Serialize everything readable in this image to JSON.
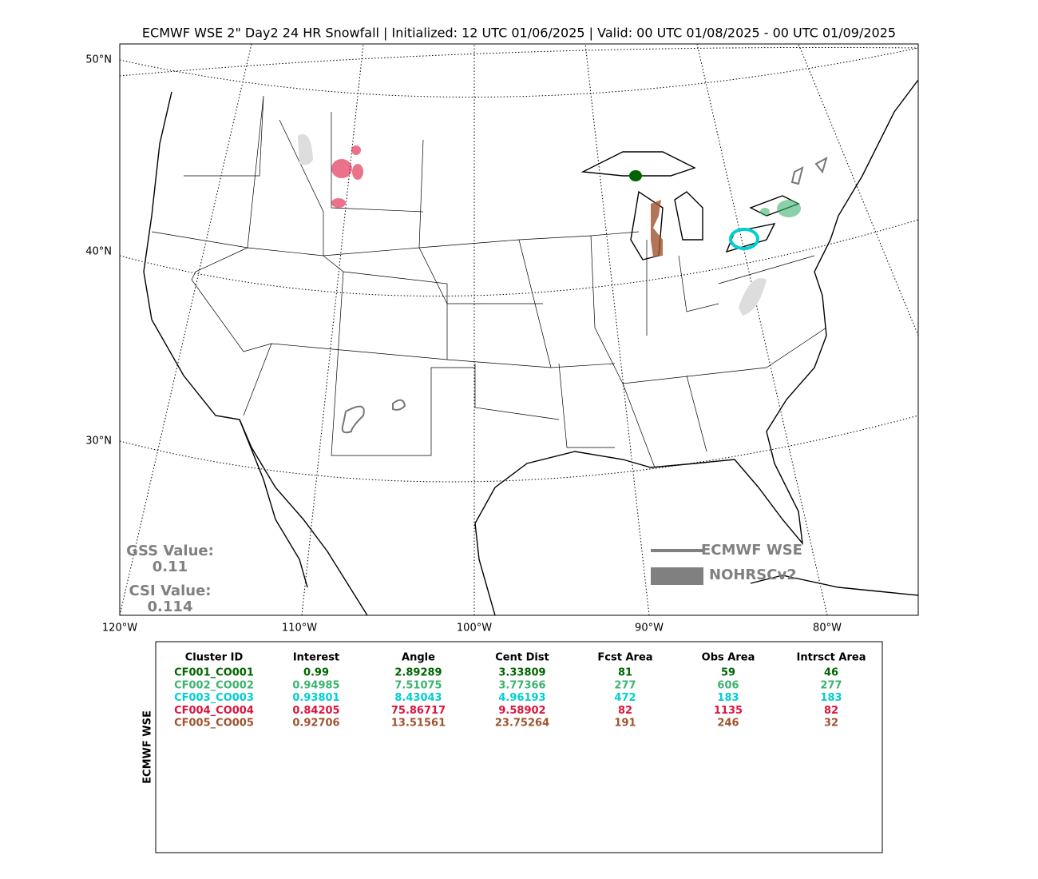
{
  "title": "ECMWF WSE 2\" Day2 24 HR Snowfall | Initialized: 12 UTC 01/06/2025 | Valid: 00 UTC 01/08/2025 - 00 UTC 01/09/2025",
  "map": {
    "lat_labels": [
      "50°N",
      "40°N",
      "30°N"
    ],
    "lon_labels": [
      "120°W",
      "110°W",
      "100°W",
      "90°W",
      "80°W"
    ],
    "scores": [
      {
        "label": "GSS Value:",
        "value": "0.11"
      },
      {
        "label": "CSI Value:",
        "value": "0.114"
      }
    ],
    "legend": [
      {
        "name": "ECMWF WSE",
        "style": "line",
        "color": "#808080"
      },
      {
        "name": "NOHRSCv2",
        "style": "fill",
        "color": "#808080"
      }
    ]
  },
  "table": {
    "side_label": "ECMWF WSE",
    "headers": [
      "Cluster ID",
      "Interest",
      "Angle",
      "Cent Dist",
      "Fcst Area",
      "Obs Area",
      "Intrsct Area"
    ],
    "rows": [
      {
        "color": "#006400",
        "cells": [
          "CF001_CO001",
          "0.99",
          "2.89289",
          "3.33809",
          "81",
          "59",
          "46"
        ]
      },
      {
        "color": "#3cb371",
        "cells": [
          "CF002_CO002",
          "0.94985",
          "7.51075",
          "3.77366",
          "277",
          "606",
          "277"
        ]
      },
      {
        "color": "#00ced1",
        "cells": [
          "CF003_CO003",
          "0.93801",
          "8.43043",
          "4.96193",
          "472",
          "183",
          "183"
        ]
      },
      {
        "color": "#dc143c",
        "cells": [
          "CF004_CO004",
          "0.84205",
          "75.86717",
          "9.58902",
          "82",
          "1135",
          "82"
        ]
      },
      {
        "color": "#a0522d",
        "cells": [
          "CF005_CO005",
          "0.92706",
          "13.51561",
          "23.75264",
          "191",
          "246",
          "32"
        ]
      }
    ]
  }
}
